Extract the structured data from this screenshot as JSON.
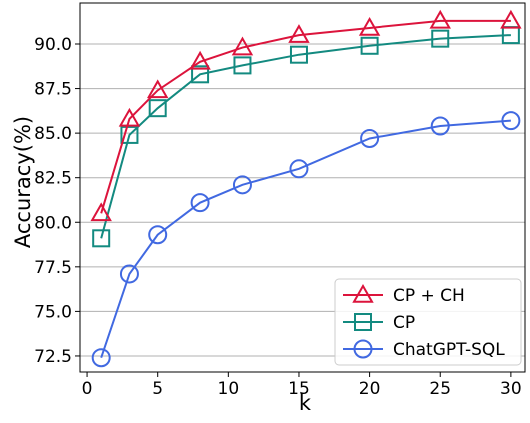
{
  "chart_data": {
    "type": "line",
    "xlabel": "k",
    "ylabel": "Accuracy(%)",
    "xlim": [
      -0.5,
      31
    ],
    "ylim": [
      71.6,
      92.3
    ],
    "xticks": [
      0,
      5,
      10,
      15,
      20,
      25,
      30
    ],
    "xtick_labels": [
      "0",
      "5",
      "10",
      "15",
      "20",
      "25",
      "30"
    ],
    "yticks": [
      72.5,
      75.0,
      77.5,
      80.0,
      82.5,
      85.0,
      87.5,
      90.0
    ],
    "ytick_labels": [
      "72.5",
      "75.0",
      "77.5",
      "80.0",
      "82.5",
      "85.0",
      "87.5",
      "90.0"
    ],
    "grid": "horizontal",
    "legend_position": "lower-right",
    "x": [
      1,
      3,
      5,
      8,
      11,
      15,
      20,
      25,
      30
    ],
    "series": [
      {
        "name": "CP + CH",
        "marker": "triangle",
        "color": "#dc143c",
        "values": [
          80.5,
          85.8,
          87.4,
          89.0,
          89.8,
          90.5,
          90.9,
          91.3,
          91.3
        ]
      },
      {
        "name": "CP",
        "marker": "square",
        "color": "#138a80",
        "values": [
          79.1,
          84.9,
          86.4,
          88.3,
          88.8,
          89.4,
          89.9,
          90.3,
          90.5
        ]
      },
      {
        "name": "ChatGPT-SQL",
        "marker": "circle",
        "color": "#4169e1",
        "values": [
          72.4,
          77.1,
          79.3,
          81.1,
          82.1,
          83.0,
          84.7,
          85.4,
          85.7
        ]
      }
    ]
  }
}
